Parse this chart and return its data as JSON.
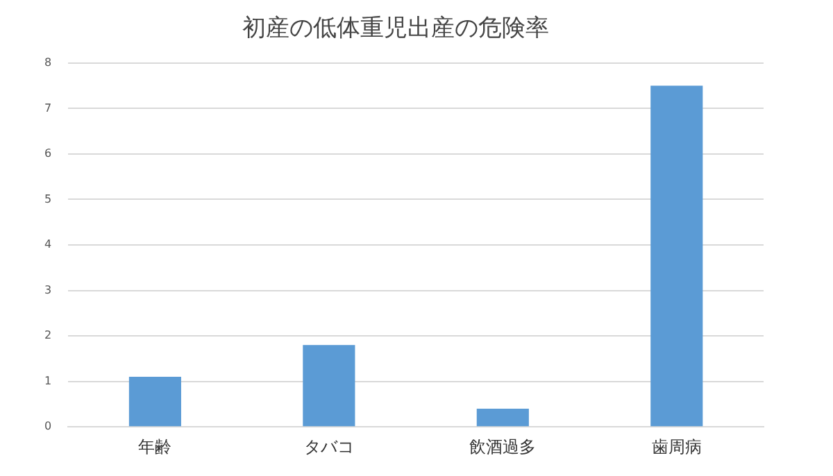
{
  "chart_data": {
    "type": "bar",
    "title": "初産の低体重児出産の危険率",
    "categories": [
      "年齢",
      "タバコ",
      "飲酒過多",
      "歯周病"
    ],
    "values": [
      1.1,
      1.8,
      0.4,
      7.5
    ],
    "color": "#5b9bd5",
    "ylim": [
      0,
      8
    ],
    "yticks": [
      0,
      1,
      2,
      3,
      4,
      5,
      6,
      7,
      8
    ],
    "grid": "y",
    "legend": false
  }
}
